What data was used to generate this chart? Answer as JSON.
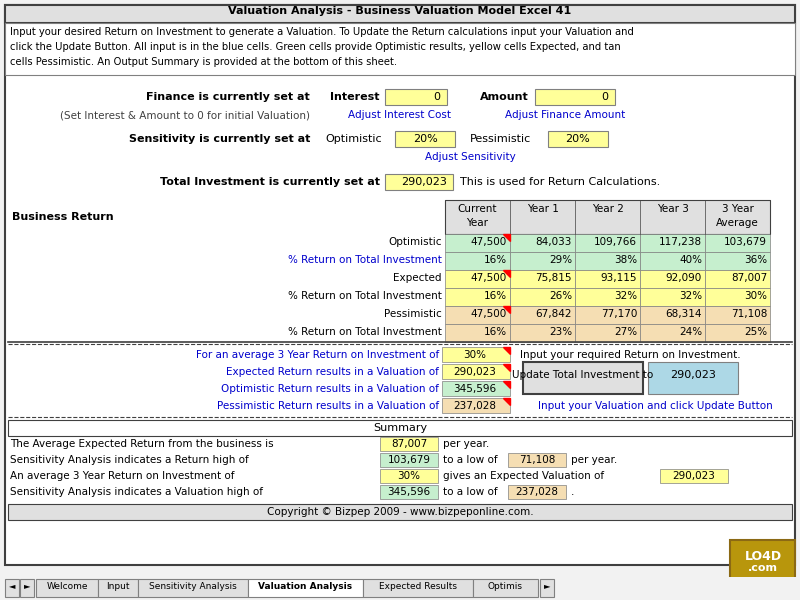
{
  "title": "Valuation Analysis - Business Valuation Model Excel 41",
  "intro_text_lines": [
    "Input your desired Return on Investment to generate a Valuation. To Update the Return calculations input your Valuation and",
    "click the Update Button. All input is in the blue cells. Green cells provide Optimistic results, yellow cells Expected, and tan",
    "cells Pessimistic. An Output Summary is provided at the bottom of this sheet."
  ],
  "finance_label": "Finance is currently set at",
  "finance_sublabel": "(Set Interest & Amount to 0 for initial Valuation)",
  "interest_label": "Interest",
  "interest_value": "0",
  "amount_label": "Amount",
  "amount_value": "0",
  "adjust_interest": "Adjust Interest Cost",
  "adjust_finance": "Adjust Finance Amount",
  "sensitivity_label": "Sensitivity is currently set at",
  "optimistic_label": "Optimistic",
  "optimistic_value": "20%",
  "pessimistic_label": "Pessimistic",
  "pessimistic_value": "20%",
  "adjust_sensitivity": "Adjust Sensitivity",
  "total_investment_label": "Total Investment is currently set at",
  "total_investment_value": "290,023",
  "total_investment_note": "This is used for Return Calculations.",
  "table_headers": [
    "Current\nYear",
    "Year 1",
    "Year 2",
    "Year 3",
    "3 Year\nAverage"
  ],
  "business_return_label": "Business Return",
  "rows": [
    {
      "label": "Optimistic",
      "values": [
        "47,500",
        "84,033",
        "109,766",
        "117,238",
        "103,679"
      ],
      "color": "#c6efce",
      "link": false,
      "red_tri": true
    },
    {
      "label": "% Return on Total Investment",
      "values": [
        "16%",
        "29%",
        "38%",
        "40%",
        "36%"
      ],
      "color": "#c6efce",
      "link": true,
      "red_tri": false
    },
    {
      "label": "Expected",
      "values": [
        "47,500",
        "75,815",
        "93,115",
        "92,090",
        "87,007"
      ],
      "color": "#ffff99",
      "link": false,
      "red_tri": true
    },
    {
      "label": "% Return on Total Investment",
      "values": [
        "16%",
        "26%",
        "32%",
        "32%",
        "30%"
      ],
      "color": "#ffff99",
      "link": false,
      "red_tri": false
    },
    {
      "label": "Pessimistic",
      "values": [
        "47,500",
        "67,842",
        "77,170",
        "68,314",
        "71,108"
      ],
      "color": "#f5deb3",
      "link": false,
      "red_tri": true
    },
    {
      "label": "% Return on Total Investment",
      "values": [
        "16%",
        "23%",
        "27%",
        "24%",
        "25%"
      ],
      "color": "#f5deb3",
      "link": false,
      "red_tri": false
    }
  ],
  "val_label1": "For an average 3 Year Return on Investment of",
  "val_value1": "30%",
  "val_color1": "#ffff99",
  "val_note1": "Input your required Return on Investment.",
  "val_label2": "Expected Return results in a Valuation of",
  "val_value2": "290,023",
  "val_color2": "#ffff99",
  "val_label3": "Optimistic Return results in a Valuation of",
  "val_value3": "345,596",
  "val_color3": "#c6efce",
  "val_label4": "Pessimistic Return results in a Valuation of",
  "val_value4": "237,028",
  "val_color4": "#f5deb3",
  "update_button_text": "Update Total Investment to",
  "update_value": "290,023",
  "input_note": "Input your Valuation and click Update Button",
  "summary_title": "Summary",
  "sum1_text": "The Average Expected Return from the business is",
  "sum1_val": "87,007",
  "sum1_color": "#ffff99",
  "sum1_suffix": "per year.",
  "sum2_text": "Sensitivity Analysis indicates a Return high of",
  "sum2_val": "103,679",
  "sum2_color": "#c6efce",
  "sum2_mid": "to a low of",
  "sum2_val2": "71,108",
  "sum2_color2": "#f5deb3",
  "sum2_suffix": "per year.",
  "sum3_text": "An average 3 Year Return on Investment of",
  "sum3_val": "30%",
  "sum3_color": "#ffff99",
  "sum3_mid": "gives an Expected Valuation of",
  "sum3_val2": "290,023",
  "sum3_color2": "#ffff99",
  "sum4_text": "Sensitivity Analysis indicates a Valuation high of",
  "sum4_val": "345,596",
  "sum4_color": "#c6efce",
  "sum4_mid": "to a low of",
  "sum4_val2": "237,028",
  "sum4_color2": "#f5deb3",
  "copyright": "Copyright © Bizpep 2009 - www.bizpeponline.com.",
  "tabs": [
    "Welcome",
    "Input",
    "Sensitivity Analysis",
    "Valuation Analysis",
    "Expected Results",
    "Optimis"
  ],
  "tab_active": 3,
  "bg_color": "#f2f2f2",
  "white": "#ffffff",
  "light_gray": "#e0e0e0",
  "border_dark": "#404040",
  "border_med": "#808080",
  "link_color": "#0000cc",
  "yellow_input": "#ffff99",
  "green_opt": "#c6efce",
  "tan_pess": "#f5deb3",
  "blue_input": "#add8e6",
  "header_bg": "#d4d0c8"
}
